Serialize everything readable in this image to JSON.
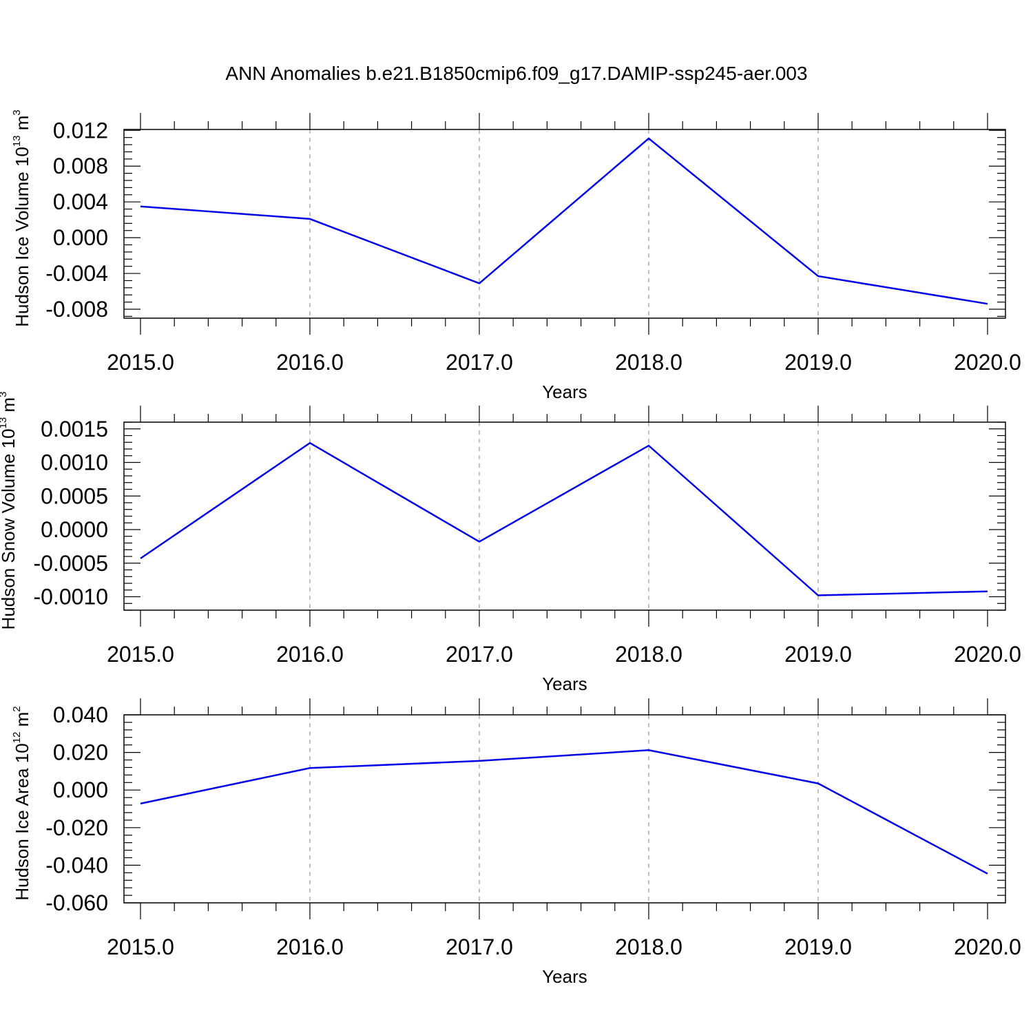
{
  "title": "ANN Anomalies b.e21.B1850cmip6.f09_g17.DAMIP-ssp245-aer.003",
  "chart_data": [
    {
      "type": "line",
      "x": [
        2015,
        2016,
        2017,
        2018,
        2019,
        2020
      ],
      "series": [
        {
          "values": [
            0.0035,
            0.0021,
            -0.0051,
            0.0111,
            -0.0043,
            -0.0074
          ],
          "color": "#0000ee"
        }
      ],
      "xlim": [
        2015,
        2020
      ],
      "ylim": [
        -0.009,
        0.0121
      ],
      "xticks": [
        "2015.0",
        "2016.0",
        "2017.0",
        "2018.0",
        "2019.0",
        "2020.0"
      ],
      "yticks": [
        {
          "value": 0.012,
          "label": "0.012"
        },
        {
          "value": 0.008,
          "label": "0.008"
        },
        {
          "value": 0.004,
          "label": "0.004"
        },
        {
          "value": 0.0,
          "label": "0.000"
        },
        {
          "value": -0.004,
          "label": "-0.004"
        },
        {
          "value": -0.008,
          "label": "-0.008"
        }
      ],
      "xlabel": "Years",
      "ylabel": {
        "text": "Hudson Ice Volume 10",
        "power": "13",
        "unit": " m",
        "unit_power": "3"
      },
      "grid": "x-dashed"
    },
    {
      "type": "line",
      "x": [
        2015,
        2016,
        2017,
        2018,
        2019,
        2020
      ],
      "series": [
        {
          "values": [
            -0.00043,
            0.00129,
            -0.00018,
            0.00125,
            -0.00098,
            -0.00092
          ],
          "color": "#0000ee"
        }
      ],
      "xlim": [
        2015,
        2020
      ],
      "ylim": [
        -0.0012,
        0.0016
      ],
      "xticks": [
        "2015.0",
        "2016.0",
        "2017.0",
        "2018.0",
        "2019.0",
        "2020.0"
      ],
      "yticks": [
        {
          "value": 0.0015,
          "label": "0.0015"
        },
        {
          "value": 0.001,
          "label": "0.0010"
        },
        {
          "value": 0.0005,
          "label": "0.0005"
        },
        {
          "value": 0.0,
          "label": "0.0000"
        },
        {
          "value": -0.0005,
          "label": "-0.0005"
        },
        {
          "value": -0.001,
          "label": "-0.0010"
        }
      ],
      "xlabel": "Years",
      "ylabel": {
        "text": "Hudson Snow Volume 10",
        "power": "13",
        "unit": " m",
        "unit_power": "3"
      },
      "grid": "x-dashed"
    },
    {
      "type": "line",
      "x": [
        2015,
        2016,
        2017,
        2018,
        2019,
        2020
      ],
      "series": [
        {
          "values": [
            -0.0072,
            0.0117,
            0.0155,
            0.0212,
            0.0035,
            -0.0445
          ],
          "color": "#0000ee"
        }
      ],
      "xlim": [
        2015,
        2020
      ],
      "ylim": [
        -0.06,
        0.04
      ],
      "xticks": [
        "2015.0",
        "2016.0",
        "2017.0",
        "2018.0",
        "2019.0",
        "2020.0"
      ],
      "yticks": [
        {
          "value": 0.04,
          "label": "0.040"
        },
        {
          "value": 0.02,
          "label": "0.020"
        },
        {
          "value": 0.0,
          "label": "0.000"
        },
        {
          "value": -0.02,
          "label": "-0.020"
        },
        {
          "value": -0.04,
          "label": "-0.040"
        },
        {
          "value": -0.06,
          "label": "-0.060"
        }
      ],
      "xlabel": "Years",
      "ylabel": {
        "text": "Hudson Ice Area 10",
        "power": "12",
        "unit": " m",
        "unit_power": "2"
      },
      "grid": "x-dashed"
    }
  ]
}
